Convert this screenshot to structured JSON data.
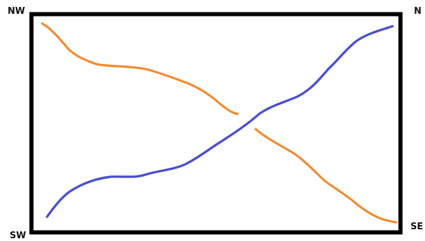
{
  "diagram": {
    "corners": {
      "nw": "NW",
      "ne": "N",
      "sw": "SW",
      "se": "SE"
    },
    "colors": {
      "frame": "#000000",
      "orange_path": "#F28A2E",
      "blue_path": "#4A4FCC"
    },
    "paths": [
      {
        "name": "orange-path-upper",
        "color_key": "orange_path",
        "from": "NW",
        "toward": "center"
      },
      {
        "name": "orange-path-lower",
        "color_key": "orange_path",
        "from": "center",
        "toward": "SE"
      },
      {
        "name": "blue-path",
        "color_key": "blue_path",
        "from": "SW",
        "toward": "NE"
      }
    ]
  }
}
